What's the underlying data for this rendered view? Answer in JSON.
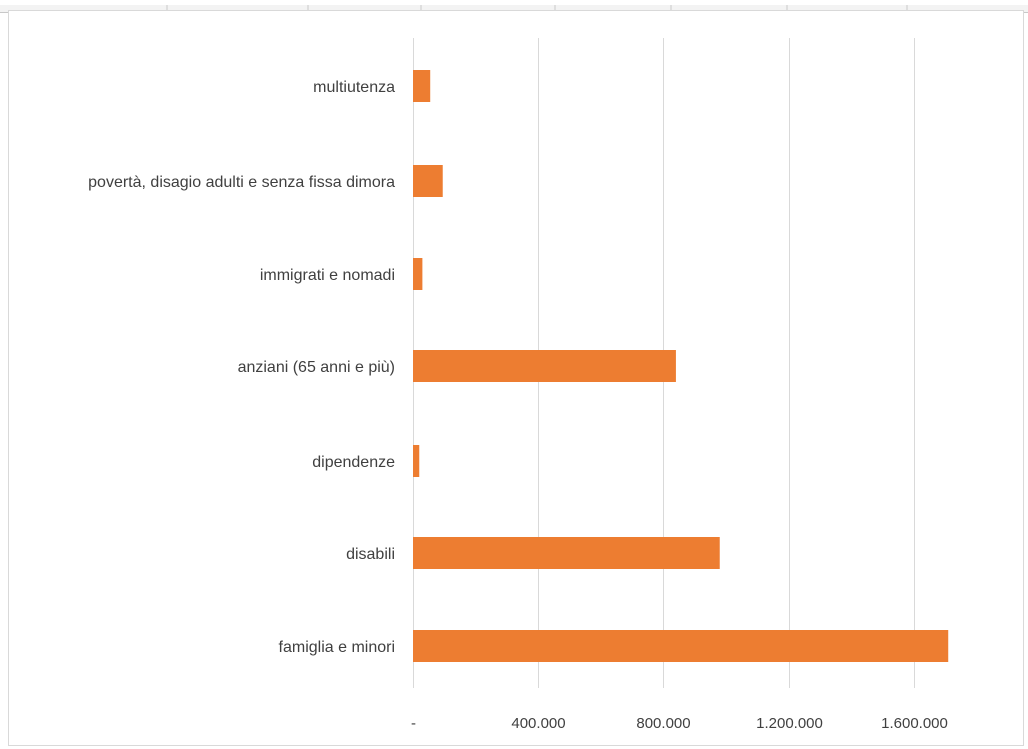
{
  "chart_data": {
    "type": "bar",
    "orientation": "horizontal",
    "categories": [
      "multiutenza",
      "povertà, disagio adulti e senza fissa dimora",
      "immigrati e nomadi",
      "anziani (65 anni e più)",
      "dipendenze",
      "disabili",
      "famiglia e minori"
    ],
    "values": [
      55000,
      95000,
      30000,
      840000,
      20000,
      980000,
      1710000
    ],
    "xlim": [
      0,
      1710000
    ],
    "xticks": [
      0,
      400000,
      800000,
      1200000,
      1600000
    ],
    "xtick_labels": [
      "-",
      "400.000",
      "800.000",
      "1.200.000",
      "1.600.000"
    ],
    "grid": "vertical",
    "legend": "none",
    "bar_color": "#ED7D31",
    "gridline_color": "#d9d9d9",
    "title": "",
    "xlabel": "",
    "ylabel": ""
  }
}
